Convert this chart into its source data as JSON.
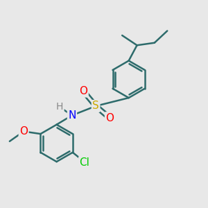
{
  "bg_color": "#e8e8e8",
  "bond_color": "#2d6b6b",
  "bond_width": 1.8,
  "atom_colors": {
    "S": "#ccaa00",
    "O": "#ff0000",
    "N": "#0000ff",
    "Cl": "#00cc00",
    "H": "#888888",
    "C": "#2d6b6b"
  },
  "font_size": 11
}
